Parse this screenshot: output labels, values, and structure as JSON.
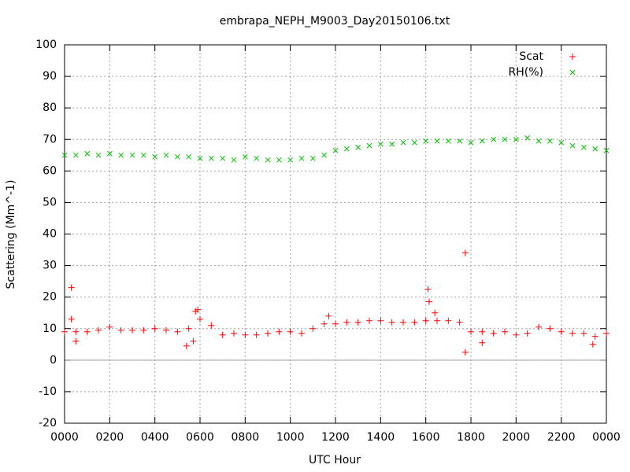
{
  "chart_data": {
    "type": "scatter",
    "title": "embrapa_NEPH_M9003_Day20150106.txt",
    "x_label": "UTC Hour",
    "y_label": "Scattering (Mm^-1)",
    "xlim": [
      0,
      24
    ],
    "xticks": [
      {
        "value": 0,
        "label": "0000"
      },
      {
        "value": 2,
        "label": "0200"
      },
      {
        "value": 4,
        "label": "0400"
      },
      {
        "value": 6,
        "label": "0600"
      },
      {
        "value": 8,
        "label": "0800"
      },
      {
        "value": 10,
        "label": "1000"
      },
      {
        "value": 12,
        "label": "1200"
      },
      {
        "value": 14,
        "label": "1400"
      },
      {
        "value": 16,
        "label": "1600"
      },
      {
        "value": 18,
        "label": "1800"
      },
      {
        "value": 20,
        "label": "2000"
      },
      {
        "value": 22,
        "label": "2200"
      },
      {
        "value": 24,
        "label": "0000"
      }
    ],
    "ylim": [
      -20,
      100
    ],
    "yticks": [
      -20,
      -10,
      0,
      10,
      20,
      30,
      40,
      50,
      60,
      70,
      80,
      90,
      100
    ],
    "grid": true,
    "legend": "top-right",
    "series": [
      {
        "name": "Scat",
        "color": "#ff0000",
        "marker": "plus",
        "x": [
          0,
          0.3,
          0.3,
          0.5,
          0.5,
          1,
          1.5,
          2,
          2.5,
          3,
          3.5,
          4,
          4.5,
          5,
          5.4,
          5.5,
          5.7,
          5.8,
          5.9,
          6,
          6.5,
          7,
          7.5,
          8,
          8.5,
          9,
          9.5,
          10,
          10.5,
          11,
          11.5,
          11.7,
          12,
          12.5,
          13,
          13.5,
          14,
          14.5,
          15,
          15.5,
          16,
          16.1,
          16.15,
          16.4,
          16.5,
          17,
          17.5,
          17.75,
          17.75,
          18,
          18.5,
          18.5,
          19,
          19.5,
          20,
          20.5,
          21,
          21.5,
          22,
          22.5,
          23,
          23.4,
          23.5,
          24
        ],
        "values": [
          9,
          23,
          13,
          9,
          6,
          9,
          9.5,
          10.5,
          9.5,
          9.5,
          9.5,
          10,
          9.5,
          9,
          4.5,
          10,
          6,
          15.5,
          16,
          13,
          11,
          8,
          8.5,
          8,
          8,
          8.5,
          9,
          9,
          8.5,
          10,
          11.5,
          14,
          11.5,
          12,
          12,
          12.5,
          12.5,
          12,
          12,
          12,
          12.5,
          22.5,
          18.5,
          15,
          12.5,
          12.5,
          12,
          34,
          2.5,
          9,
          9,
          5.5,
          8.5,
          9,
          8,
          8.5,
          10.5,
          10,
          9,
          8.5,
          8.5,
          5,
          7.5,
          8.5
        ]
      },
      {
        "name": "RH(%)",
        "color": "#00c000",
        "marker": "cross",
        "x": [
          0,
          0.5,
          1,
          1.5,
          2,
          2.5,
          3,
          3.5,
          4,
          4.5,
          5,
          5.5,
          6,
          6.5,
          7,
          7.5,
          8,
          8.5,
          9,
          9.5,
          10,
          10.5,
          11,
          11.5,
          12,
          12.5,
          13,
          13.5,
          14,
          14.5,
          15,
          15.5,
          16,
          16.5,
          17,
          17.5,
          18,
          18.5,
          19,
          19.5,
          20,
          20.5,
          21,
          21.5,
          22,
          22.5,
          23,
          23.5,
          24
        ],
        "values": [
          65,
          65,
          65.5,
          65,
          65.5,
          65,
          65,
          65,
          64.5,
          65,
          64.5,
          64.5,
          64,
          64,
          64,
          63.5,
          64.5,
          64,
          63.5,
          63.5,
          63.5,
          64,
          64,
          65,
          66.5,
          67,
          67.5,
          68,
          68.5,
          68.5,
          69,
          69,
          69.5,
          69.5,
          69.5,
          69.5,
          69,
          69.5,
          70,
          70,
          70,
          70.5,
          69.5,
          69.5,
          69,
          68,
          67.5,
          67,
          66.5
        ]
      }
    ]
  }
}
